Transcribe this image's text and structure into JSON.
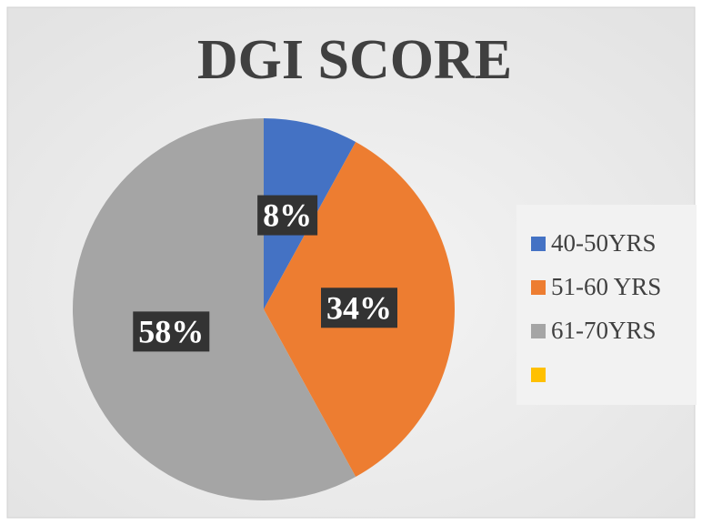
{
  "chart_data": {
    "type": "pie",
    "title": "DGI SCORE",
    "categories": [
      "40-50YRS",
      "51-60 YRS",
      "61-70YRS",
      null
    ],
    "values": [
      8,
      34,
      58,
      0
    ],
    "value_labels": [
      "8%",
      "34%",
      "58%",
      null
    ],
    "colors": [
      "#4472c4",
      "#ed7d31",
      "#a5a5a5",
      "#ffc000"
    ],
    "legend": "right"
  }
}
